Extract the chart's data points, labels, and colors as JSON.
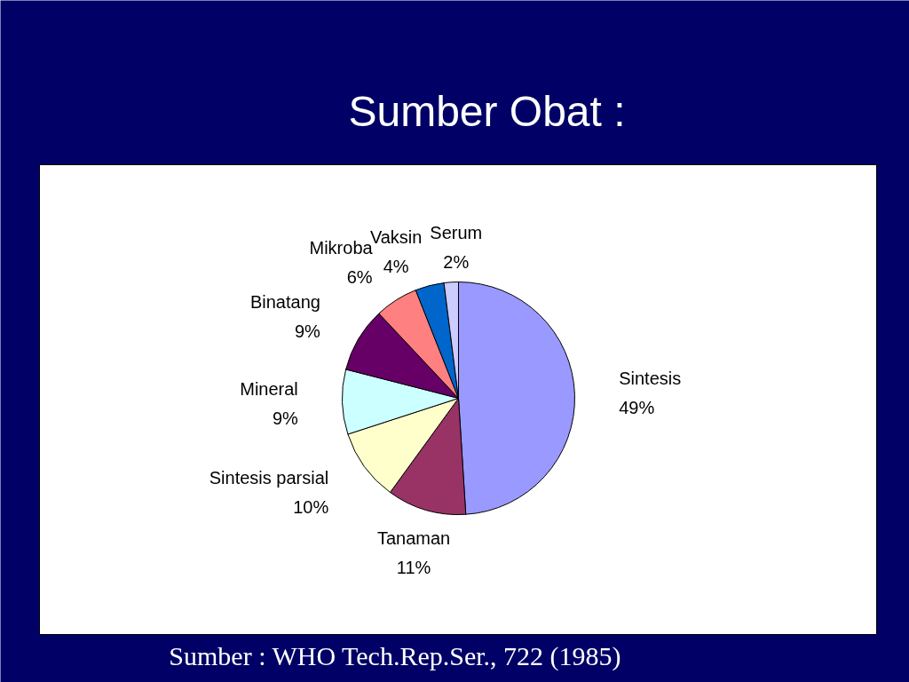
{
  "chart_data": {
    "type": "pie",
    "title": "Sumber Obat :",
    "categories": [
      "Sintesis",
      "Tanaman",
      "Sintesis parsial",
      "Mineral",
      "Binatang",
      "Mikroba",
      "Vaksin",
      "Serum"
    ],
    "values": [
      49,
      11,
      10,
      9,
      9,
      6,
      4,
      2
    ],
    "colors": [
      "#9999ff",
      "#993366",
      "#ffffcc",
      "#ccffff",
      "#660066",
      "#ff8080",
      "#0066cc",
      "#ccccff"
    ],
    "value_labels": [
      "49%",
      "11%",
      "10%",
      "9%",
      "9%",
      "6%",
      "4%",
      "2%"
    ],
    "annotations": [
      "Sumber : WHO Tech.Rep.Ser., 722 (1985)"
    ]
  }
}
